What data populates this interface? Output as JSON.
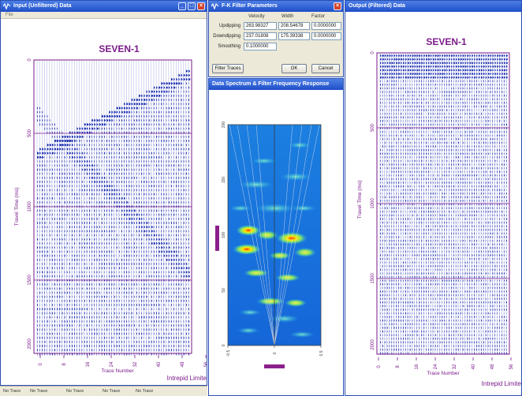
{
  "input_window": {
    "title": "Input (Unfiltered) Data",
    "menu_text": "File",
    "chart_title": "SEVEN-1",
    "y_axis_label": "Travel Time (ms)",
    "x_axis_label": "Trace Number",
    "credit": "Intrepid Limited",
    "y_ticks": [
      "0",
      "500",
      "1000",
      "1500",
      "2000"
    ],
    "x_ticks": [
      "0",
      "8",
      "16",
      "24",
      "32",
      "40",
      "48",
      "56"
    ]
  },
  "status_bar": {
    "cells": [
      "No Trace",
      "No Trace",
      "No Trace",
      "No Trace",
      "No Trace"
    ]
  },
  "fk_dialog": {
    "title": "F-K Filter Parameters",
    "col_velocity": "Velocity",
    "col_width": "Width",
    "col_factor": "Factor",
    "rows": [
      {
        "label": "Updipping",
        "velocity": "263.98327",
        "width": "208.54678",
        "factor": "0.0000000"
      },
      {
        "label": "Downdipping",
        "velocity": "237.01808",
        "width": "175.39338",
        "factor": "0.0000000"
      },
      {
        "label": "Smoothing",
        "velocity": "0.1000000"
      }
    ],
    "filter_button": "Filter Traces",
    "ok_button": "OK",
    "cancel_button": "Cancel"
  },
  "spectrum_window": {
    "title": "Data Spectrum & Filter Frequency Response",
    "y_ticks": [
      "0",
      "50",
      "100",
      "150",
      "200"
    ],
    "x_ticks": [
      "-0.5",
      "0",
      "0.5"
    ],
    "accent_color": "#8b1f8b"
  },
  "output_window": {
    "title": "Output (Filtered) Data",
    "chart_title": "SEVEN-1",
    "y_axis_label": "Travel Time (ms)",
    "x_axis_label": "Trace Number",
    "credit": "Intrepid Limited",
    "y_ticks": [
      "0",
      "500",
      "1000",
      "1500",
      "2000"
    ],
    "x_ticks": [
      "0",
      "8",
      "16",
      "24",
      "32",
      "40",
      "48",
      "56"
    ]
  },
  "colors": {
    "title_bar": "#1f4fc8",
    "trace_blue": "#1c2fb0",
    "plot_frame": "#7a1a8a"
  }
}
